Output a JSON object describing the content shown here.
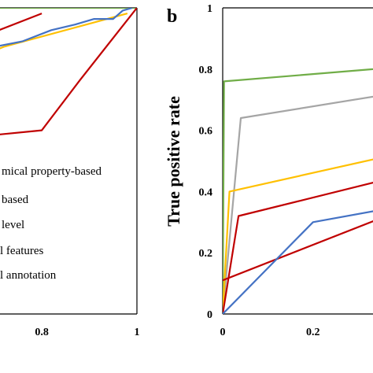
{
  "chart_data": [
    {
      "type": "line",
      "panel_label": "",
      "xlabel": "",
      "ylabel": "",
      "xlim": [
        0.55,
        1.0
      ],
      "ylim": [
        0.45,
        1.0
      ],
      "x_ticks": [
        0.8,
        1
      ],
      "x_tick_labels": [
        "0.8",
        "1"
      ],
      "y_ticks": [],
      "y_tick_labels": [],
      "legend_entries": [
        "mical property-based",
        "based",
        "level",
        "l features",
        "l annotation"
      ],
      "series": [
        {
          "color": "#70ad47",
          "points": [
            [
              0.55,
              1.0
            ],
            [
              1.0,
              1.0
            ]
          ]
        },
        {
          "color": "#ffc000",
          "points": [
            [
              0.55,
              0.87
            ],
            [
              0.72,
              0.93
            ],
            [
              0.98,
              0.99
            ]
          ]
        },
        {
          "color": "#c00000",
          "points": [
            [
              0.55,
              0.88
            ],
            [
              0.65,
              0.94
            ],
            [
              0.8,
              0.99
            ]
          ]
        },
        {
          "color": "#4472c4",
          "points": [
            [
              0.55,
              0.87
            ],
            [
              0.58,
              0.89
            ],
            [
              0.63,
              0.92
            ],
            [
              0.7,
              0.93
            ],
            [
              0.76,
              0.94
            ],
            [
              0.82,
              0.96
            ],
            [
              0.87,
              0.97
            ],
            [
              0.91,
              0.98
            ],
            [
              0.95,
              0.98
            ],
            [
              0.97,
              0.995
            ],
            [
              0.99,
              1.0
            ]
          ]
        },
        {
          "color": "#c00000",
          "points": [
            [
              0.55,
              0.74
            ],
            [
              0.68,
              0.77
            ],
            [
              0.8,
              0.78
            ],
            [
              0.88,
              0.87
            ],
            [
              1.0,
              1.0
            ]
          ]
        }
      ]
    },
    {
      "type": "line",
      "panel_label": "b",
      "xlabel": "",
      "ylabel": "True positive rate",
      "xlim": [
        0,
        0.5
      ],
      "ylim": [
        0,
        1
      ],
      "x_ticks": [
        0,
        0.2
      ],
      "x_tick_labels": [
        "0",
        "0.2"
      ],
      "y_ticks": [
        0,
        0.2,
        0.4,
        0.6,
        0.8,
        1
      ],
      "y_tick_labels": [
        "0",
        "0.2",
        "0.4",
        "0.6",
        "0.8",
        "1"
      ],
      "series": [
        {
          "color": "#70ad47",
          "points": [
            [
              0,
              0
            ],
            [
              0.003,
              0.76
            ],
            [
              0.5,
              0.82
            ]
          ]
        },
        {
          "color": "#a5a5a5",
          "points": [
            [
              0,
              0
            ],
            [
              0.04,
              0.64
            ],
            [
              0.5,
              0.75
            ]
          ]
        },
        {
          "color": "#ffc000",
          "points": [
            [
              0,
              0
            ],
            [
              0.015,
              0.4
            ],
            [
              0.5,
              0.56
            ]
          ]
        },
        {
          "color": "#c00000",
          "points": [
            [
              0,
              0
            ],
            [
              0.035,
              0.32
            ],
            [
              0.5,
              0.49
            ]
          ]
        },
        {
          "color": "#c00000",
          "points": [
            [
              0,
              0.11
            ],
            [
              0.5,
              0.4
            ]
          ]
        },
        {
          "color": "#4472c4",
          "points": [
            [
              0,
              0
            ],
            [
              0.2,
              0.3
            ],
            [
              0.5,
              0.38
            ]
          ]
        }
      ]
    }
  ]
}
